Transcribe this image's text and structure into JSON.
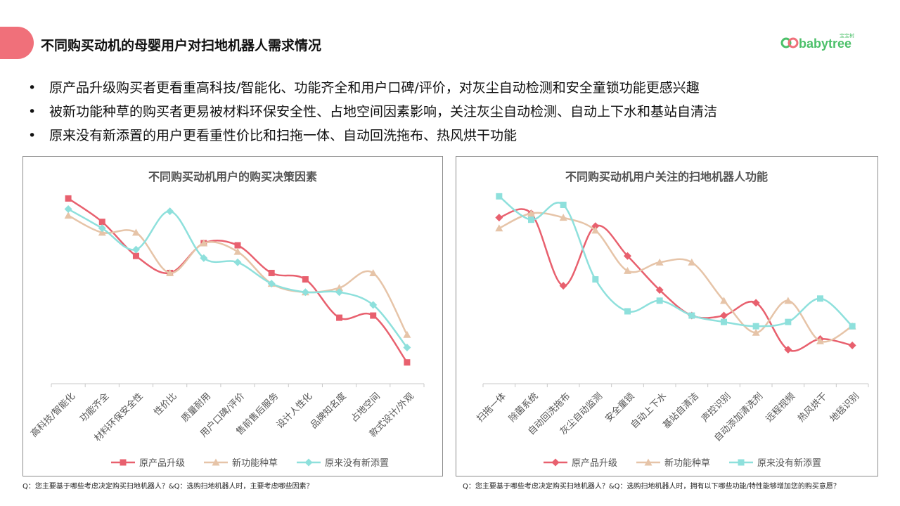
{
  "page": {
    "title": "不同购买动机的母婴用户对扫地机器人需求情况",
    "logo_text": "babytree",
    "logo_small": "宝宝树",
    "bullets": [
      "原产品升级购买者更看重高科技/智能化、功能齐全和用户口碑/评价，对灰尘自动检测和安全童锁功能更感兴趣",
      "被新功能种草的购买者更易被材料环保安全性、占地空间因素影响，关注灰尘自动检测、自动上下水和基站自清洁",
      "原来没有新添置的用户更看重性价比和扫拖一体、自动回洗拖布、热风烘干功能"
    ],
    "bullet_glyph": "•",
    "footnotes": [
      "Q：您主要基于哪些考虑决定购买扫地机器人？&Q：选购扫地机器人时，主要考虑哪些因素？",
      "Q：您主要基于哪些考虑决定购买扫地机器人？&Q：选购扫地机器人时，拥有以下哪些功能/特性能够增加您的购买意愿？"
    ],
    "colors": {
      "accent": "#f0707a",
      "series": [
        "#e8606e",
        "#e6c4a8",
        "#8ee0dc"
      ]
    }
  },
  "chart_data": [
    {
      "type": "line",
      "title": "不同购买动机用户的购买决策因素",
      "categories": [
        "高科技/智能化",
        "功能齐全",
        "材料环保安全性",
        "性价比",
        "质量耐用",
        "用户口碑/评价",
        "售前售后服务",
        "设计人性化",
        "品牌知名度",
        "占地空间",
        "款式设计/外观"
      ],
      "ylim": [
        0,
        1
      ],
      "grid": false,
      "legend": "bottom",
      "smooth": true,
      "series": [
        {
          "name": "原产品升级",
          "marker": "square",
          "values": [
            0.87,
            0.76,
            0.6,
            0.52,
            0.66,
            0.65,
            0.52,
            0.49,
            0.31,
            0.32,
            0.1
          ]
        },
        {
          "name": "新功能种草",
          "marker": "triangle",
          "values": [
            0.79,
            0.71,
            0.71,
            0.52,
            0.66,
            0.62,
            0.47,
            0.43,
            0.45,
            0.52,
            0.23
          ]
        },
        {
          "name": "原来没有新添置",
          "marker": "diamond",
          "values": [
            0.82,
            0.73,
            0.63,
            0.81,
            0.59,
            0.57,
            0.47,
            0.43,
            0.43,
            0.37,
            0.17
          ]
        }
      ]
    },
    {
      "type": "line",
      "title": "不同购买动机用户关注的扫地机器人功能",
      "categories": [
        "扫拖一体",
        "除菌系统",
        "自动回洗拖布",
        "灰尘自动监测",
        "安全童锁",
        "自动上下水",
        "基站自清洁",
        "声控识别",
        "自动添加清洗剂",
        "远程视频",
        "热风烘干",
        "地毯识别"
      ],
      "ylim": [
        0,
        1
      ],
      "grid": false,
      "legend": "bottom",
      "smooth": true,
      "series": [
        {
          "name": "原产品升级",
          "marker": "diamond",
          "values": [
            0.78,
            0.8,
            0.46,
            0.74,
            0.6,
            0.44,
            0.32,
            0.32,
            0.38,
            0.16,
            0.21,
            0.18
          ]
        },
        {
          "name": "新功能种草",
          "marker": "triangle",
          "values": [
            0.73,
            0.8,
            0.78,
            0.72,
            0.53,
            0.57,
            0.57,
            0.39,
            0.24,
            0.39,
            0.2,
            0.27
          ]
        },
        {
          "name": "原来没有新添置",
          "marker": "square",
          "values": [
            0.88,
            0.77,
            0.84,
            0.49,
            0.34,
            0.39,
            0.32,
            0.29,
            0.27,
            0.29,
            0.4,
            0.27
          ]
        }
      ]
    }
  ]
}
